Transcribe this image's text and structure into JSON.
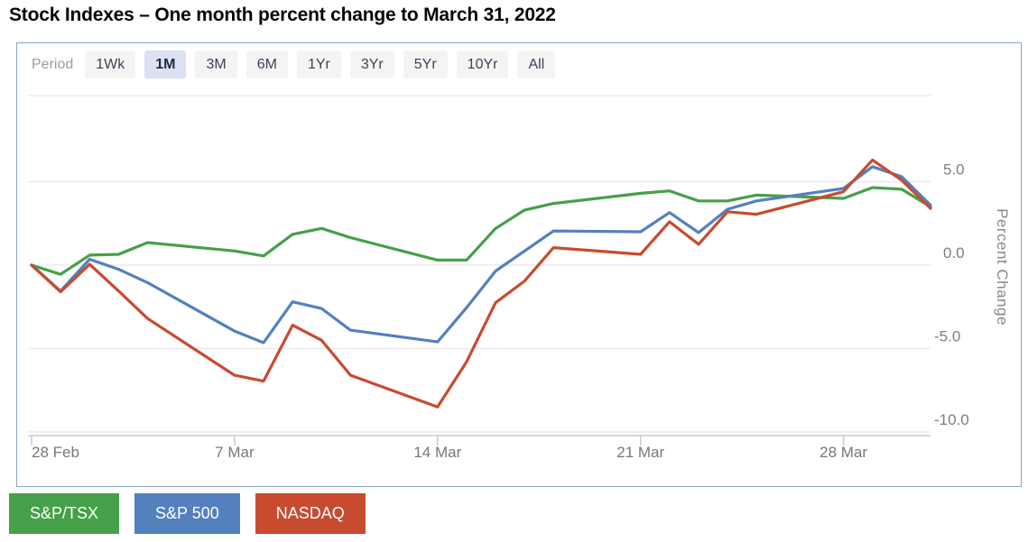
{
  "page": {
    "title": "Stock Indexes – One month percent change to March 31, 2022"
  },
  "period_selector": {
    "label": "Period",
    "active": "1M",
    "options": [
      "1Wk",
      "1M",
      "3M",
      "6M",
      "1Yr",
      "3Yr",
      "5Yr",
      "10Yr",
      "All"
    ]
  },
  "chart_data": {
    "type": "line",
    "ylabel": "Percent Change",
    "grid": true,
    "legend_position": "bottom-outside",
    "x_axis": {
      "unit": "date",
      "start": "28 Feb",
      "end": "31 Mar",
      "ticks": [
        {
          "day": 0,
          "label": "28 Feb"
        },
        {
          "day": 7,
          "label": "7 Mar"
        },
        {
          "day": 14,
          "label": "14 Mar"
        },
        {
          "day": 21,
          "label": "21 Mar"
        },
        {
          "day": 28,
          "label": "28 Mar"
        }
      ]
    },
    "y_axis": {
      "range": [
        -10.2,
        10.2
      ],
      "ticks": [
        {
          "value": 5,
          "label": "5.0"
        },
        {
          "value": 0,
          "label": "0.0"
        },
        {
          "value": -5,
          "label": "-5.0"
        },
        {
          "value": -10,
          "label": "-10.0"
        }
      ]
    },
    "x_days": [
      0,
      1,
      2,
      3,
      4,
      7,
      8,
      9,
      10,
      11,
      14,
      15,
      16,
      17,
      18,
      21,
      22,
      23,
      24,
      25,
      28,
      29,
      30,
      31
    ],
    "x_dates": [
      "28 Feb",
      "1 Mar",
      "2 Mar",
      "3 Mar",
      "4 Mar",
      "7 Mar",
      "8 Mar",
      "9 Mar",
      "10 Mar",
      "11 Mar",
      "14 Mar",
      "15 Mar",
      "16 Mar",
      "17 Mar",
      "18 Mar",
      "21 Mar",
      "22 Mar",
      "23 Mar",
      "24 Mar",
      "25 Mar",
      "28 Mar",
      "29 Mar",
      "30 Mar",
      "31 Mar"
    ],
    "series": [
      {
        "name": "S&P/TSX",
        "color": "#45a049",
        "values": [
          0,
          -0.55,
          0.6,
          0.65,
          1.35,
          0.85,
          0.55,
          1.85,
          2.2,
          1.65,
          0.3,
          0.3,
          2.2,
          3.3,
          3.7,
          4.3,
          4.45,
          3.85,
          3.85,
          4.2,
          4.0,
          4.65,
          4.55,
          3.5
        ]
      },
      {
        "name": "S&P 500",
        "color": "#5480be",
        "values": [
          0,
          -1.55,
          0.35,
          -0.25,
          -1.05,
          -3.95,
          -4.65,
          -2.2,
          -2.6,
          -3.9,
          -4.6,
          -2.55,
          -0.35,
          0.85,
          2.05,
          2.0,
          3.15,
          1.95,
          3.35,
          3.85,
          4.6,
          5.9,
          5.3,
          3.6
        ]
      },
      {
        "name": "NASDAQ",
        "color": "#c84b2f",
        "values": [
          0,
          -1.6,
          0.05,
          -1.55,
          -3.2,
          -6.6,
          -6.95,
          -3.6,
          -4.5,
          -6.6,
          -8.5,
          -5.8,
          -2.25,
          -0.95,
          1.05,
          0.65,
          2.6,
          1.25,
          3.2,
          3.05,
          4.4,
          6.3,
          5.1,
          3.4
        ]
      }
    ]
  },
  "legend": [
    {
      "label": "S&P/TSX",
      "color": "#45a049"
    },
    {
      "label": "S&P 500",
      "color": "#5480be"
    },
    {
      "label": "NASDAQ",
      "color": "#c84b2f"
    }
  ]
}
